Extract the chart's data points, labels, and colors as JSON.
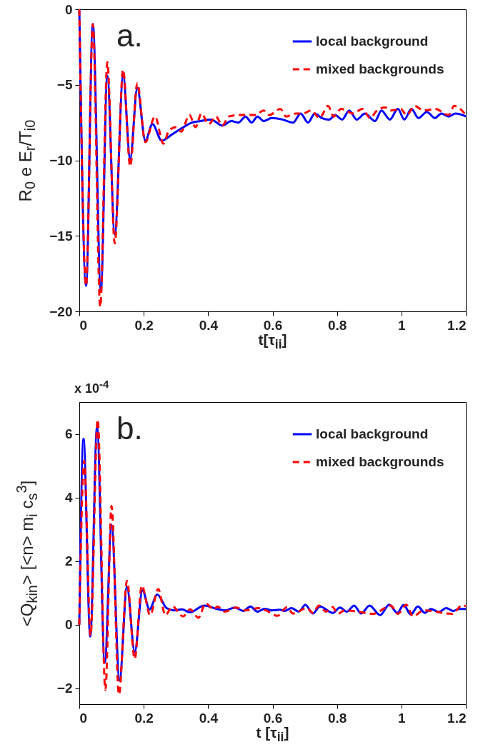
{
  "chart_data": [
    {
      "type": "line",
      "xlabel": "t[τ$_{ii}$]",
      "ylabel": "R$_{0}$ e E$_{r}$/T$_{i0}$",
      "annotations": [
        "a."
      ],
      "xlim": [
        0,
        1.2
      ],
      "ylim": [
        -20,
        0
      ],
      "xticks": [
        0,
        0.2,
        0.4,
        0.6,
        0.8,
        1,
        1.2
      ],
      "yticks": [
        -20,
        -15,
        -10,
        -5,
        0
      ],
      "grid": false,
      "legend": "top right",
      "series": [
        {
          "name": "local background",
          "color": "#0000ff",
          "line_style": "solid",
          "x": [
            0,
            0.021,
            0.042,
            0.067,
            0.087,
            0.11,
            0.136,
            0.158,
            0.18,
            0.205,
            0.227,
            0.256,
            0.287,
            0.316,
            0.35,
            0.376,
            0.409,
            0.444,
            0.472,
            0.494,
            0.516,
            0.535,
            0.553,
            0.572,
            0.598,
            0.631,
            0.664,
            0.687,
            0.71,
            0.731,
            0.753,
            0.776,
            0.794,
            0.816,
            0.838,
            0.861,
            0.887,
            0.918,
            0.938,
            0.964,
            0.989,
            1.009,
            1.031,
            1.053,
            1.079,
            1.104,
            1.124,
            1.146,
            1.168,
            1.19,
            1.2
          ],
          "values": [
            0,
            -18.3,
            -0.98,
            -18.6,
            -4.4,
            -14.9,
            -4.4,
            -9.9,
            -5.2,
            -8.7,
            -7.6,
            -8.7,
            -8.3,
            -7.9,
            -7.5,
            -7.4,
            -7.3,
            -7.7,
            -7.4,
            -7.5,
            -7.1,
            -7.5,
            -7.1,
            -7.4,
            -7.2,
            -7.3,
            -7.5,
            -6.9,
            -7.5,
            -6.9,
            -7.2,
            -7.3,
            -7,
            -7.3,
            -6.7,
            -7.3,
            -6.9,
            -7.4,
            -6.7,
            -7.3,
            -6.6,
            -7.3,
            -6.6,
            -7.2,
            -6.8,
            -7.2,
            -6.9,
            -7.1,
            -6.9,
            -7,
            -7.1
          ]
        },
        {
          "name": "mixed backgrounds",
          "color": "#ff0000",
          "line_style": "dashed",
          "x": [
            0,
            0.021,
            0.042,
            0.065,
            0.087,
            0.11,
            0.136,
            0.158,
            0.18,
            0.205,
            0.235,
            0.261,
            0.279,
            0.302,
            0.316,
            0.342,
            0.361,
            0.379,
            0.402,
            0.424,
            0.444,
            0.464,
            0.498,
            0.524,
            0.547,
            0.572,
            0.59,
            0.624,
            0.642,
            0.672,
            0.694,
            0.72,
            0.746,
            0.772,
            0.79,
            0.813,
            0.85,
            0.879,
            0.903,
            0.924,
            0.95,
            0.968,
            0.998,
            1.016,
            1.042,
            1.068,
            1.105,
            1.146,
            1.164,
            1.183,
            1.2
          ],
          "values": [
            0,
            -18.3,
            -0.98,
            -19.7,
            -3.5,
            -15.5,
            -4,
            -10.4,
            -4.9,
            -8.8,
            -7.1,
            -8.9,
            -8,
            -7.8,
            -8.1,
            -7,
            -7.8,
            -6.9,
            -7.6,
            -7.1,
            -7.7,
            -7.1,
            -7,
            -7,
            -7,
            -6.7,
            -7,
            -6.6,
            -7.1,
            -6.9,
            -6.9,
            -6.7,
            -7.2,
            -6.4,
            -7.1,
            -6.6,
            -6.9,
            -6.6,
            -7.2,
            -6.7,
            -6.5,
            -6.7,
            -6.6,
            -7,
            -6.4,
            -6.7,
            -6.6,
            -7,
            -6.4,
            -6.6,
            -7
          ]
        }
      ]
    },
    {
      "type": "line",
      "xlabel": "t [τ$_{ii}$]",
      "ylabel": "<Q$_{kin}$> [<n> m$_{i}$ c$_{s}$$^{3}$]",
      "annotations": [
        "b.",
        "x 10$^{-4}$"
      ],
      "xlim": [
        0,
        1.2
      ],
      "ylim": [
        -2.5,
        7
      ],
      "xticks": [
        0,
        0.2,
        0.4,
        0.6,
        0.8,
        1,
        1.2
      ],
      "yticks": [
        -2,
        0,
        2,
        4,
        6
      ],
      "grid": false,
      "legend": "top right",
      "series": [
        {
          "name": "local background",
          "color": "#0000ff",
          "line_style": "solid",
          "x": [
            0,
            0.013,
            0.034,
            0.055,
            0.079,
            0.1,
            0.125,
            0.148,
            0.172,
            0.196,
            0.218,
            0.242,
            0.271,
            0.293,
            0.319,
            0.343,
            0.388,
            0.425,
            0.454,
            0.483,
            0.509,
            0.531,
            0.553,
            0.575,
            0.597,
            0.623,
            0.637,
            0.659,
            0.681,
            0.702,
            0.725,
            0.747,
            0.787,
            0.809,
            0.831,
            0.853,
            0.875,
            0.901,
            0.934,
            0.962,
            0.987,
            1.007,
            1.029,
            1.051,
            1.073,
            1.091,
            1.117,
            1.139,
            1.161,
            1.179,
            1.2
          ],
          "values": [
            0,
            5.85,
            -0.37,
            6.2,
            -1.2,
            3.13,
            -1.75,
            1.19,
            -0.86,
            1.08,
            0.48,
            0.95,
            0.52,
            0.45,
            0.48,
            0.39,
            0.6,
            0.5,
            0.45,
            0.54,
            0.43,
            0.57,
            0.41,
            0.5,
            0.45,
            0.47,
            0.43,
            0.52,
            0.41,
            0.62,
            0.35,
            0.57,
            0.37,
            0.54,
            0.41,
            0.6,
            0.35,
            0.6,
            0.3,
            0.63,
            0.37,
            0.62,
            0.32,
            0.57,
            0.37,
            0.49,
            0.4,
            0.52,
            0.43,
            0.49,
            0.49
          ]
        },
        {
          "name": "mixed backgrounds",
          "color": "#ff0000",
          "line_style": "dashed",
          "x": [
            0,
            0.015,
            0.035,
            0.057,
            0.081,
            0.1,
            0.123,
            0.148,
            0.172,
            0.194,
            0.22,
            0.245,
            0.267,
            0.289,
            0.322,
            0.344,
            0.37,
            0.392,
            0.418,
            0.429,
            0.451,
            0.487,
            0.513,
            0.557,
            0.579,
            0.615,
            0.645,
            0.663,
            0.707,
            0.725,
            0.744,
            0.766,
            0.787,
            0.802,
            0.824,
            0.864,
            0.912,
            0.967,
            0.989,
            1.015,
            1.036,
            1.069,
            1.157,
            1.19,
            1.2
          ],
          "values": [
            0,
            5.15,
            -0.34,
            6.45,
            -2.05,
            3.73,
            -2.2,
            1.38,
            -1.08,
            1.23,
            0.3,
            1.12,
            0.3,
            0.57,
            0.26,
            0.48,
            0.22,
            0.67,
            0.48,
            0.57,
            0.41,
            0.54,
            0.45,
            0.52,
            0.45,
            0.28,
            0.55,
            0.35,
            0.52,
            0.37,
            0.6,
            0.41,
            0.55,
            0.34,
            0.45,
            0.41,
            0.34,
            0.6,
            0.34,
            0.63,
            0.26,
            0.45,
            0.34,
            0.62,
            0.57
          ]
        }
      ]
    }
  ]
}
